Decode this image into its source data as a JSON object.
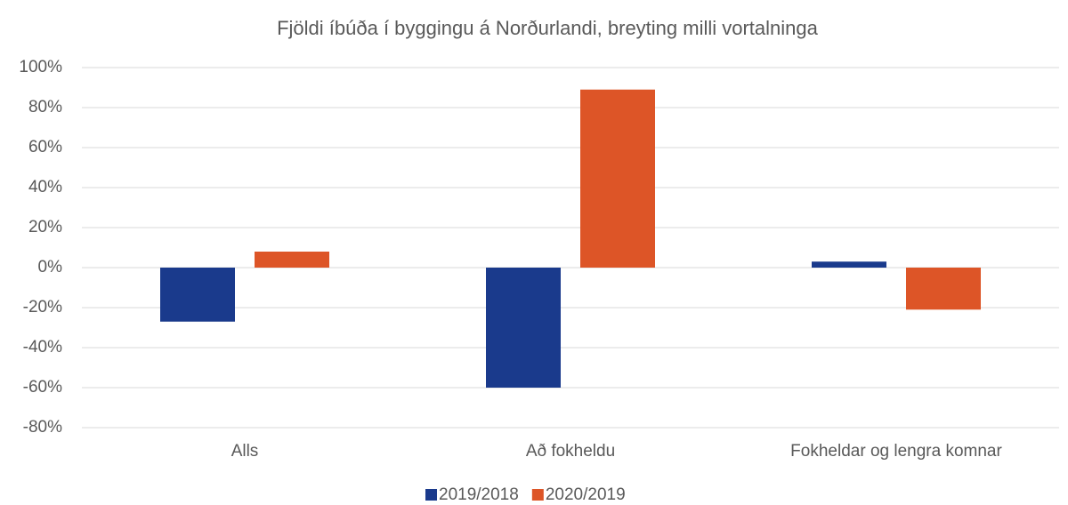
{
  "chart_data": {
    "type": "bar",
    "title": "Fjöldi íbúða í byggingu á Norðurlandi, breyting milli vortalninga",
    "categories": [
      "Alls",
      "Að fokheldu",
      "Fokheldar og lengra komnar"
    ],
    "series": [
      {
        "name": "2019/2018",
        "color": "#1a3a8c",
        "values": [
          -27,
          -60,
          3
        ]
      },
      {
        "name": "2020/2019",
        "color": "#dd5527",
        "values": [
          8,
          89,
          -21
        ]
      }
    ],
    "ylim": [
      -80,
      100
    ],
    "yticks": [
      {
        "value": -80,
        "label": "-80%"
      },
      {
        "value": -60,
        "label": "-60%"
      },
      {
        "value": -40,
        "label": "-40%"
      },
      {
        "value": -20,
        "label": "-20%"
      },
      {
        "value": 0,
        "label": "0%"
      },
      {
        "value": 20,
        "label": "20%"
      },
      {
        "value": 40,
        "label": "40%"
      },
      {
        "value": 60,
        "label": "60%"
      },
      {
        "value": 80,
        "label": "80%"
      },
      {
        "value": 100,
        "label": "100%"
      }
    ],
    "grid": true,
    "legend": "bottom"
  }
}
